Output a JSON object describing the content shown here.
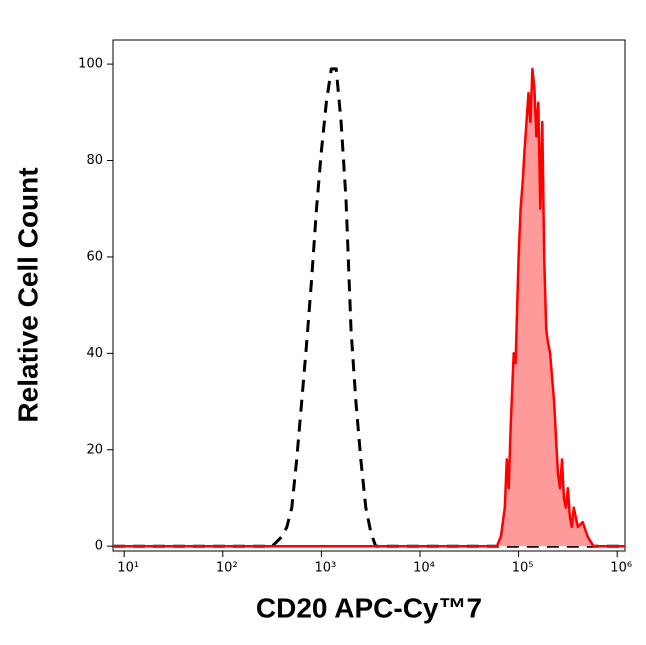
{
  "chart_data": {
    "type": "histogram-overlay",
    "x_label": "CD20 APC-Cy™7",
    "y_label": "Relative Cell Count",
    "xscale": "log",
    "xlim": [
      7.7,
      1200000
    ],
    "ylim": [
      -1,
      105
    ],
    "xticks": [
      {
        "value": 10,
        "label": "10¹"
      },
      {
        "value": 100,
        "label": "10²"
      },
      {
        "value": 1000,
        "label": "10³"
      },
      {
        "value": 10000,
        "label": "10⁴"
      },
      {
        "value": 100000,
        "label": "10⁵"
      },
      {
        "value": 1000000,
        "label": "10⁶"
      }
    ],
    "yticks": [
      0,
      20,
      40,
      60,
      80,
      100
    ],
    "series": [
      {
        "color": "#000000",
        "dash": true,
        "fill": false,
        "x": [
          7.7,
          316,
          355,
          398,
          447,
          501,
          562,
          631,
          708,
          794,
          891,
          1000,
          1122,
          1259,
          1413,
          1585,
          1778,
          1995,
          2239,
          2512,
          2818,
          3162,
          3548,
          1200000
        ],
        "values": [
          0,
          0,
          1,
          2,
          4,
          8,
          18,
          30,
          42,
          55,
          70,
          82,
          92,
          99,
          99,
          88,
          72,
          45,
          30,
          18,
          8,
          3,
          0,
          0
        ]
      },
      {
        "color": "#ff0000",
        "dash": false,
        "fill": true,
        "fill_color": "#ff9a9a",
        "x": [
          7.7,
          60300,
          66100,
          72400,
          75900,
          79400,
          83200,
          89100,
          93300,
          100000,
          104700,
          109600,
          114800,
          120200,
          125900,
          131800,
          138000,
          144500,
          151400,
          158500,
          166000,
          173800,
          182000,
          190500,
          199500,
          208900,
          218800,
          229100,
          239900,
          251200,
          263000,
          275400,
          288400,
          302000,
          316200,
          331100,
          346700,
          363100,
          398100,
          446700,
          501200,
          575400,
          1200000
        ],
        "values": [
          0,
          0,
          2,
          8,
          18,
          12,
          25,
          40,
          38,
          60,
          70,
          75,
          82,
          88,
          94,
          88,
          99,
          95,
          85,
          92,
          70,
          88,
          60,
          45,
          42,
          40,
          35,
          30,
          22,
          15,
          12,
          18,
          10,
          8,
          12,
          6,
          4,
          8,
          4,
          5,
          2,
          0,
          0
        ]
      }
    ]
  }
}
